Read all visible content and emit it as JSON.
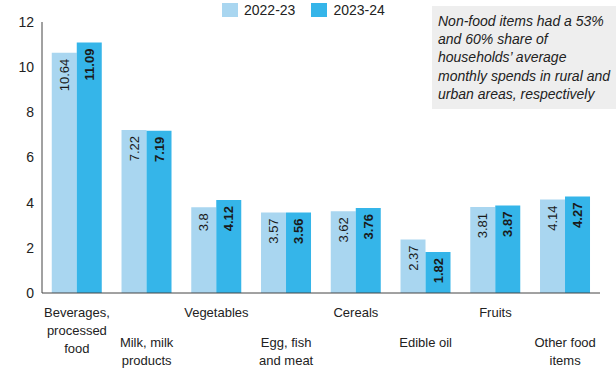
{
  "chart_data": {
    "type": "bar",
    "categories": [
      "Beverages, processed food",
      "Milk, milk products",
      "Vegetables",
      "Egg, fish and meat",
      "Cereals",
      "Edible oil",
      "Fruits",
      "Other food items"
    ],
    "series": [
      {
        "name": "2022-23",
        "color": "#a9d6f0",
        "values": [
          10.64,
          7.22,
          3.8,
          3.57,
          3.62,
          2.37,
          3.81,
          4.14
        ]
      },
      {
        "name": "2023-24",
        "color": "#35b5e9",
        "values": [
          11.09,
          7.19,
          4.12,
          3.56,
          3.76,
          1.82,
          3.87,
          4.27
        ]
      }
    ],
    "ylim": [
      0,
      12
    ],
    "yticks": [
      0,
      2,
      4,
      6,
      8,
      10,
      12
    ],
    "grid": false,
    "legend": "top",
    "data_labels": true,
    "annotations": [
      "Non-food items had a 53% and 60% share of households’ average monthly spends in rural and urban areas, respectively"
    ]
  }
}
